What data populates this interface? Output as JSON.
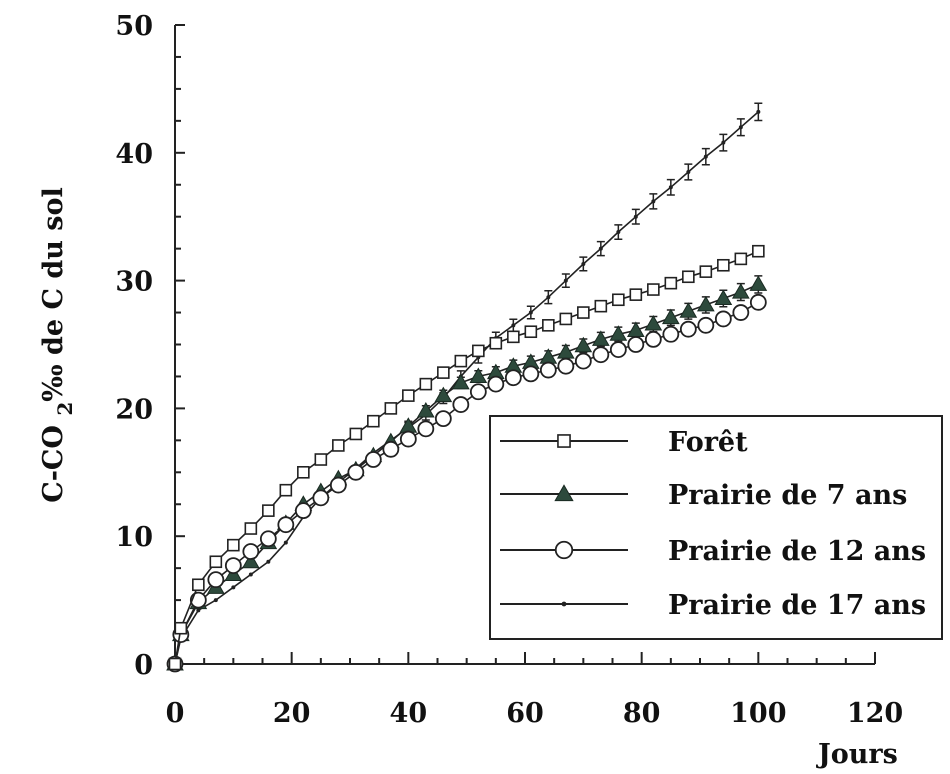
{
  "chart_data": {
    "type": "line",
    "xlabel": "Jours",
    "ylabel": "C-CO 2‰ de C du sol",
    "xlim": [
      0,
      120
    ],
    "ylim": [
      0,
      50
    ],
    "x_ticks": [
      "0",
      "20",
      "40",
      "60",
      "80",
      "100",
      "120"
    ],
    "y_ticks": [
      "0",
      "10",
      "20",
      "30",
      "40",
      "50"
    ],
    "grid": false,
    "legend_position": "bottom-right",
    "x": [
      0,
      1,
      4,
      7,
      10,
      13,
      16,
      19,
      22,
      25,
      28,
      31,
      34,
      37,
      40,
      43,
      46,
      49,
      52,
      55,
      58,
      61,
      64,
      67,
      70,
      73,
      76,
      79,
      82,
      85,
      88,
      91,
      94,
      97,
      100
    ],
    "series": [
      {
        "name": "Forêt",
        "marker": "open-square",
        "values": [
          0,
          2.8,
          6.2,
          8.0,
          9.3,
          10.6,
          12.0,
          13.6,
          15.0,
          16.0,
          17.1,
          18.0,
          19.0,
          20.0,
          21.0,
          21.9,
          22.8,
          23.7,
          24.5,
          25.1,
          25.6,
          26.0,
          26.5,
          27.0,
          27.5,
          28.0,
          28.5,
          28.9,
          29.3,
          29.8,
          30.3,
          30.7,
          31.2,
          31.7,
          32.3
        ]
      },
      {
        "name": "Prairie de 7 ans",
        "marker": "filled-triangle",
        "values": [
          0,
          2.3,
          4.8,
          6.0,
          7.0,
          8.0,
          9.5,
          11.0,
          12.5,
          13.5,
          14.5,
          15.2,
          16.3,
          17.4,
          18.6,
          19.8,
          21.0,
          22.0,
          22.5,
          22.8,
          23.3,
          23.6,
          24.0,
          24.4,
          24.9,
          25.4,
          25.8,
          26.1,
          26.6,
          27.1,
          27.6,
          28.1,
          28.6,
          29.1,
          29.7
        ]
      },
      {
        "name": "Prairie de 12 ans",
        "marker": "open-circle",
        "values": [
          0,
          2.3,
          5.0,
          6.6,
          7.7,
          8.8,
          9.8,
          10.9,
          12.0,
          13.0,
          14.0,
          15.0,
          16.0,
          16.8,
          17.6,
          18.4,
          19.2,
          20.3,
          21.3,
          21.9,
          22.4,
          22.7,
          23.0,
          23.3,
          23.7,
          24.2,
          24.6,
          25.0,
          25.4,
          25.8,
          26.2,
          26.5,
          27.0,
          27.5,
          28.3
        ]
      },
      {
        "name": "Prairie de 17 ans",
        "marker": "small-dot",
        "values": [
          0,
          2.0,
          4.2,
          5.0,
          6.0,
          7.0,
          8.0,
          9.5,
          11.5,
          13.0,
          14.2,
          15.3,
          16.5,
          17.5,
          18.5,
          19.5,
          20.8,
          22.5,
          24.0,
          25.5,
          26.5,
          27.5,
          28.7,
          30.0,
          31.3,
          32.5,
          33.8,
          35.0,
          36.2,
          37.3,
          38.5,
          39.7,
          40.8,
          42.0,
          43.2
        ]
      }
    ]
  }
}
